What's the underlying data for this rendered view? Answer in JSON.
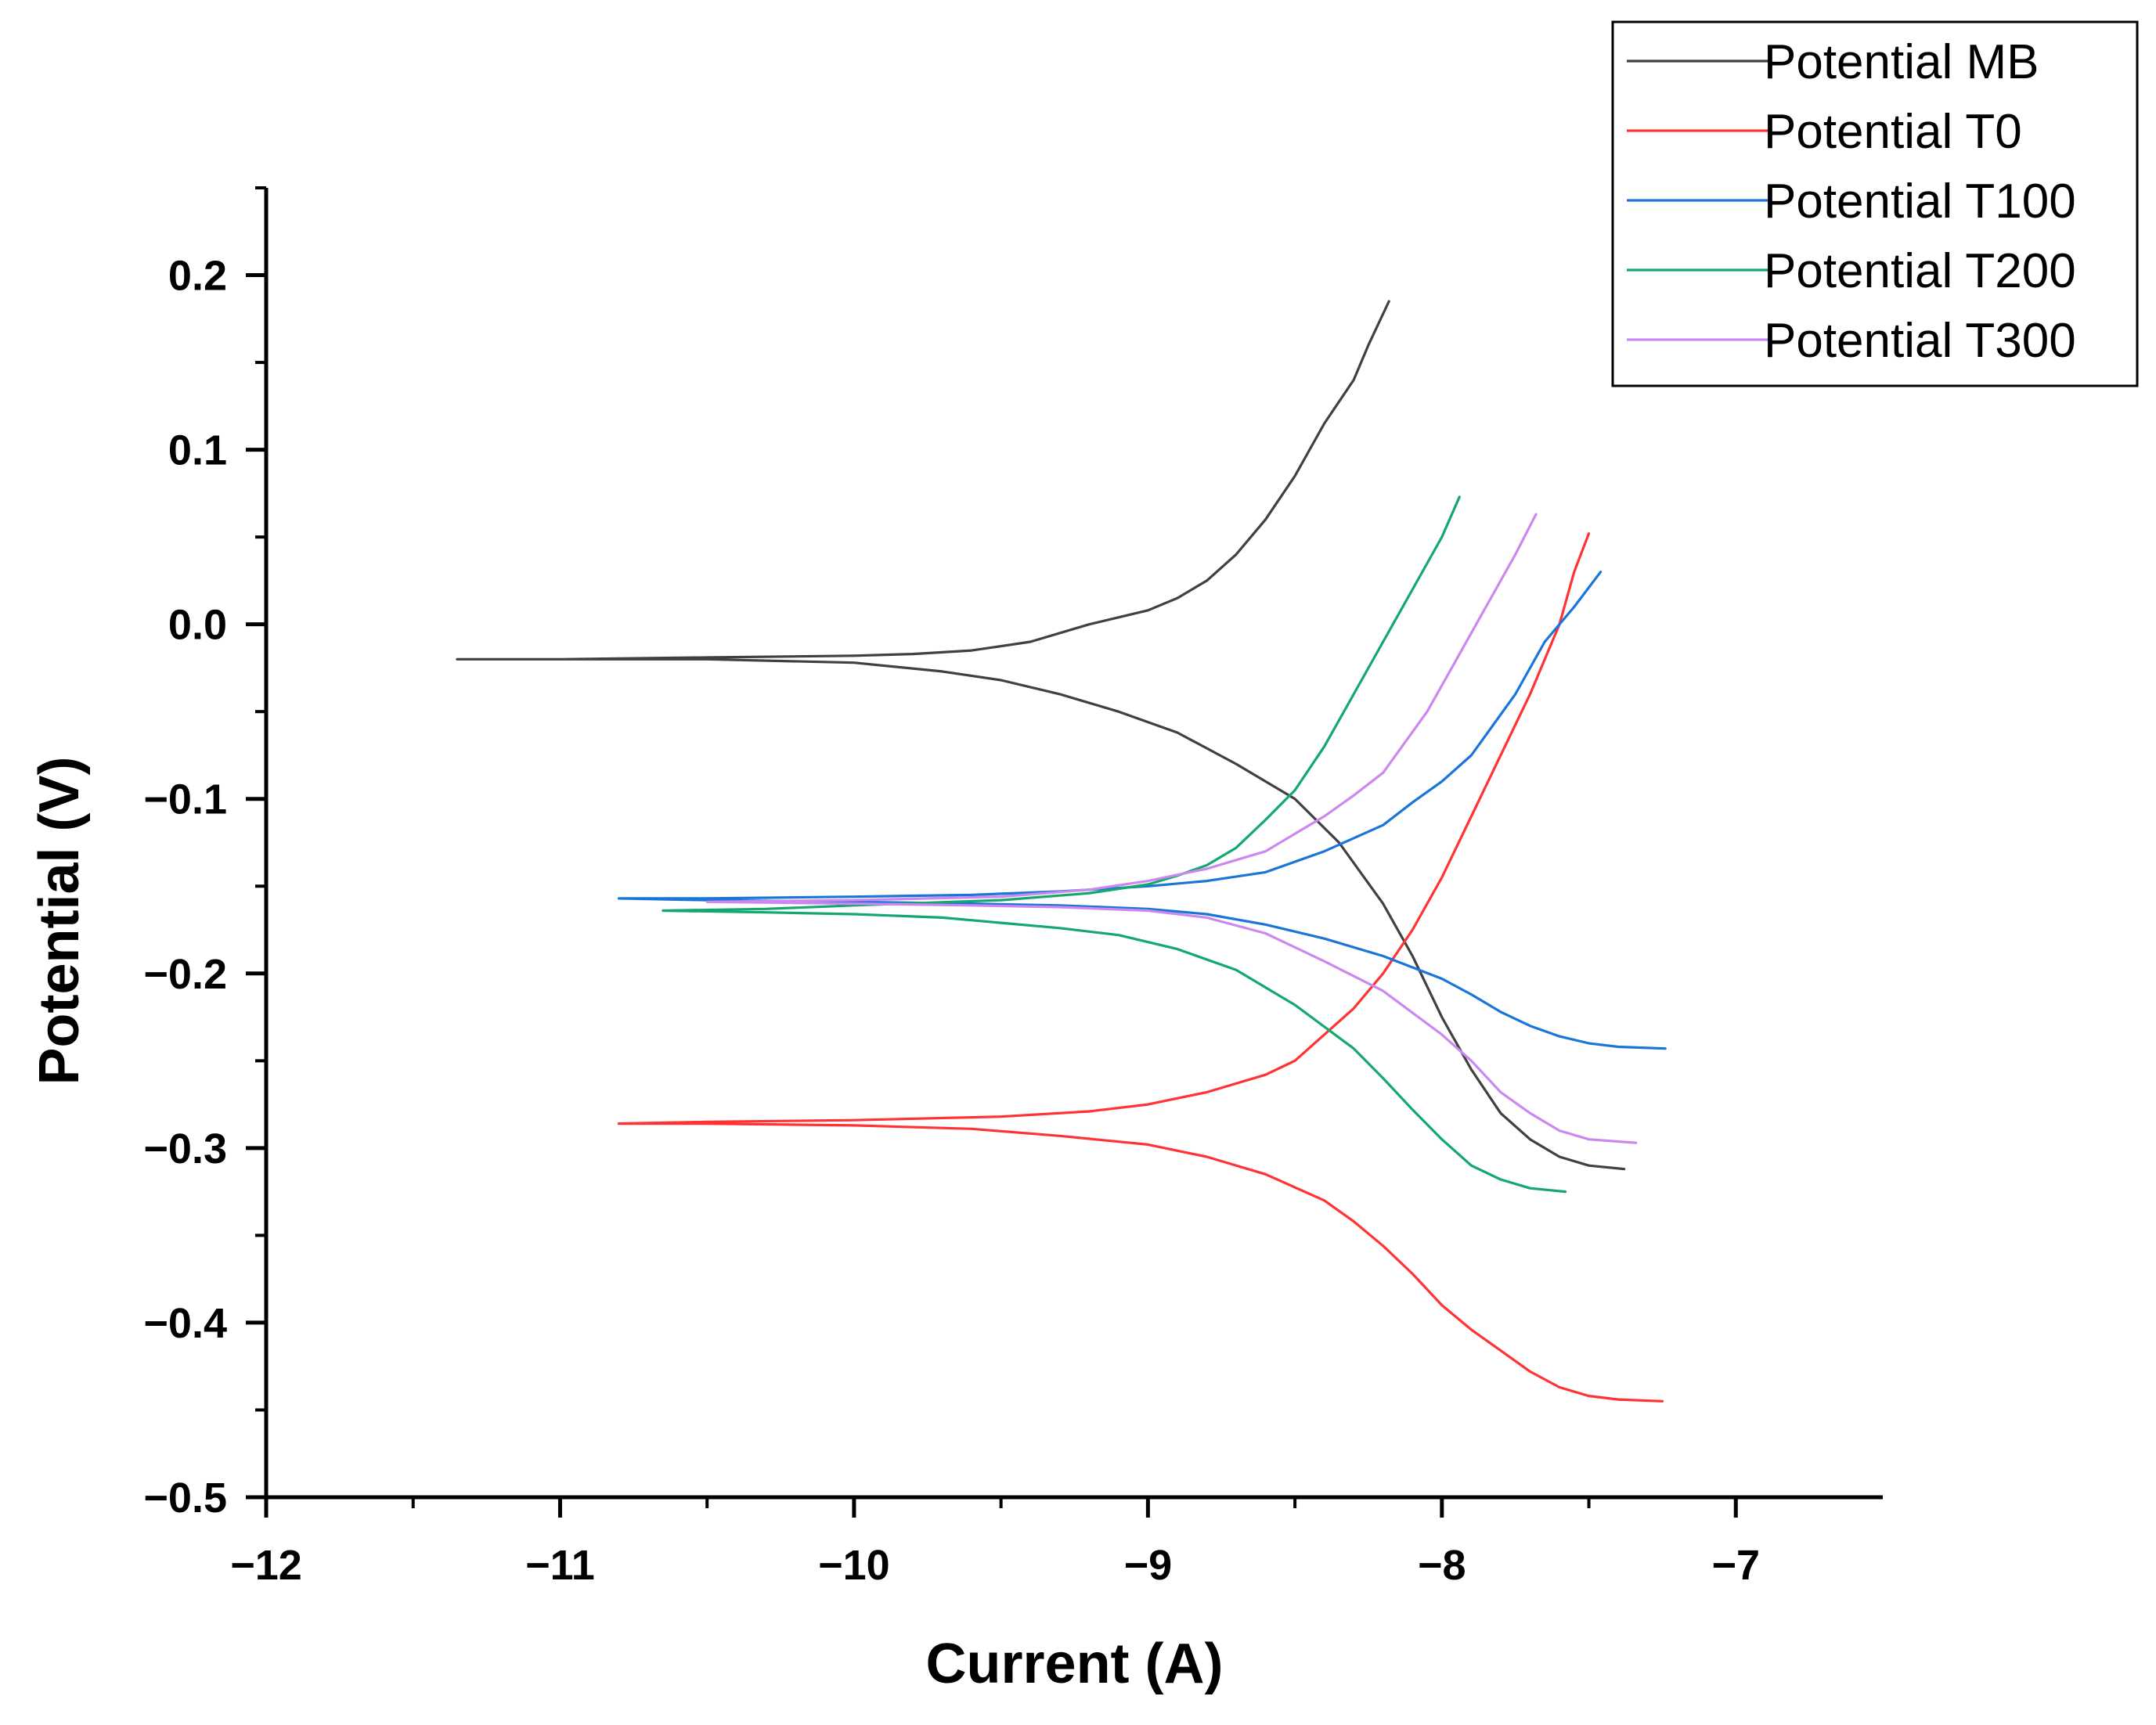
{
  "chart_data": {
    "type": "line",
    "title": "",
    "xlabel": "Current (A)",
    "ylabel": "Potential (V)",
    "xlim": [
      -12,
      -6.5
    ],
    "ylim": [
      -0.5,
      0.25
    ],
    "xticks": [
      -12,
      -11,
      -10,
      -9,
      -8,
      -7
    ],
    "xtick_labels": [
      "−12",
      "−11",
      "−10",
      "−9",
      "−8",
      "−7"
    ],
    "yticks": [
      -0.5,
      -0.4,
      -0.3,
      -0.2,
      -0.1,
      0.0,
      0.1,
      0.2
    ],
    "ytick_labels": [
      "−0.5",
      "−0.4",
      "−0.3",
      "−0.2",
      "−0.1",
      "0.0",
      "0.1",
      "0.2"
    ],
    "legend_position": "top-right",
    "series": [
      {
        "name": "Potential MB",
        "color": "#404040",
        "points": [
          [
            -8.18,
            0.185
          ],
          [
            -8.25,
            0.16
          ],
          [
            -8.3,
            0.14
          ],
          [
            -8.4,
            0.115
          ],
          [
            -8.5,
            0.085
          ],
          [
            -8.6,
            0.06
          ],
          [
            -8.7,
            0.04
          ],
          [
            -8.8,
            0.025
          ],
          [
            -8.9,
            0.015
          ],
          [
            -9.0,
            0.008
          ],
          [
            -9.2,
            0.0
          ],
          [
            -9.4,
            -0.01
          ],
          [
            -9.6,
            -0.015
          ],
          [
            -9.8,
            -0.017
          ],
          [
            -10.0,
            -0.018
          ],
          [
            -10.5,
            -0.019
          ],
          [
            -11.0,
            -0.02
          ],
          [
            -11.35,
            -0.02
          ],
          [
            -11.0,
            -0.02
          ],
          [
            -10.5,
            -0.02
          ],
          [
            -10.0,
            -0.022
          ],
          [
            -9.7,
            -0.027
          ],
          [
            -9.5,
            -0.032
          ],
          [
            -9.3,
            -0.04
          ],
          [
            -9.1,
            -0.05
          ],
          [
            -8.9,
            -0.062
          ],
          [
            -8.7,
            -0.08
          ],
          [
            -8.5,
            -0.1
          ],
          [
            -8.35,
            -0.125
          ],
          [
            -8.2,
            -0.16
          ],
          [
            -8.1,
            -0.19
          ],
          [
            -8.0,
            -0.225
          ],
          [
            -7.9,
            -0.255
          ],
          [
            -7.8,
            -0.28
          ],
          [
            -7.7,
            -0.295
          ],
          [
            -7.6,
            -0.305
          ],
          [
            -7.5,
            -0.31
          ],
          [
            -7.38,
            -0.312
          ]
        ]
      },
      {
        "name": "Potential T0",
        "color": "#ff3333",
        "points": [
          [
            -7.5,
            0.052
          ],
          [
            -7.55,
            0.03
          ],
          [
            -7.6,
            0.0
          ],
          [
            -7.7,
            -0.04
          ],
          [
            -7.8,
            -0.075
          ],
          [
            -7.9,
            -0.11
          ],
          [
            -8.0,
            -0.145
          ],
          [
            -8.1,
            -0.175
          ],
          [
            -8.2,
            -0.2
          ],
          [
            -8.3,
            -0.22
          ],
          [
            -8.4,
            -0.235
          ],
          [
            -8.5,
            -0.25
          ],
          [
            -8.6,
            -0.258
          ],
          [
            -8.8,
            -0.268
          ],
          [
            -9.0,
            -0.275
          ],
          [
            -9.2,
            -0.279
          ],
          [
            -9.5,
            -0.282
          ],
          [
            -10.0,
            -0.284
          ],
          [
            -10.5,
            -0.285
          ],
          [
            -10.8,
            -0.286
          ],
          [
            -10.5,
            -0.286
          ],
          [
            -10.0,
            -0.287
          ],
          [
            -9.6,
            -0.289
          ],
          [
            -9.3,
            -0.293
          ],
          [
            -9.0,
            -0.298
          ],
          [
            -8.8,
            -0.305
          ],
          [
            -8.6,
            -0.315
          ],
          [
            -8.4,
            -0.33
          ],
          [
            -8.3,
            -0.342
          ],
          [
            -8.2,
            -0.356
          ],
          [
            -8.1,
            -0.372
          ],
          [
            -8.0,
            -0.39
          ],
          [
            -7.9,
            -0.404
          ],
          [
            -7.8,
            -0.416
          ],
          [
            -7.7,
            -0.428
          ],
          [
            -7.6,
            -0.437
          ],
          [
            -7.5,
            -0.442
          ],
          [
            -7.4,
            -0.444
          ],
          [
            -7.25,
            -0.445
          ]
        ]
      },
      {
        "name": "Potential T100",
        "color": "#1a75d9",
        "points": [
          [
            -7.46,
            0.03
          ],
          [
            -7.55,
            0.01
          ],
          [
            -7.65,
            -0.01
          ],
          [
            -7.75,
            -0.04
          ],
          [
            -7.9,
            -0.075
          ],
          [
            -8.0,
            -0.09
          ],
          [
            -8.1,
            -0.102
          ],
          [
            -8.2,
            -0.115
          ],
          [
            -8.4,
            -0.13
          ],
          [
            -8.6,
            -0.142
          ],
          [
            -8.8,
            -0.147
          ],
          [
            -9.0,
            -0.15
          ],
          [
            -9.3,
            -0.153
          ],
          [
            -9.6,
            -0.155
          ],
          [
            -10.0,
            -0.156
          ],
          [
            -10.5,
            -0.157
          ],
          [
            -10.8,
            -0.157
          ],
          [
            -10.5,
            -0.158
          ],
          [
            -10.0,
            -0.159
          ],
          [
            -9.6,
            -0.16
          ],
          [
            -9.3,
            -0.161
          ],
          [
            -9.0,
            -0.163
          ],
          [
            -8.8,
            -0.166
          ],
          [
            -8.6,
            -0.172
          ],
          [
            -8.4,
            -0.18
          ],
          [
            -8.2,
            -0.19
          ],
          [
            -8.0,
            -0.203
          ],
          [
            -7.9,
            -0.212
          ],
          [
            -7.8,
            -0.222
          ],
          [
            -7.7,
            -0.23
          ],
          [
            -7.6,
            -0.236
          ],
          [
            -7.5,
            -0.24
          ],
          [
            -7.4,
            -0.242
          ],
          [
            -7.24,
            -0.243
          ]
        ]
      },
      {
        "name": "Potential T200",
        "color": "#14a86e",
        "points": [
          [
            -7.94,
            0.073
          ],
          [
            -8.0,
            0.05
          ],
          [
            -8.1,
            0.02
          ],
          [
            -8.2,
            -0.01
          ],
          [
            -8.3,
            -0.04
          ],
          [
            -8.4,
            -0.07
          ],
          [
            -8.5,
            -0.095
          ],
          [
            -8.6,
            -0.112
          ],
          [
            -8.7,
            -0.128
          ],
          [
            -8.8,
            -0.138
          ],
          [
            -8.9,
            -0.144
          ],
          [
            -9.0,
            -0.149
          ],
          [
            -9.2,
            -0.154
          ],
          [
            -9.5,
            -0.158
          ],
          [
            -10.0,
            -0.161
          ],
          [
            -10.3,
            -0.163
          ],
          [
            -10.65,
            -0.164
          ],
          [
            -10.3,
            -0.165
          ],
          [
            -10.0,
            -0.166
          ],
          [
            -9.7,
            -0.168
          ],
          [
            -9.5,
            -0.171
          ],
          [
            -9.3,
            -0.174
          ],
          [
            -9.1,
            -0.178
          ],
          [
            -8.9,
            -0.186
          ],
          [
            -8.7,
            -0.198
          ],
          [
            -8.5,
            -0.218
          ],
          [
            -8.3,
            -0.243
          ],
          [
            -8.2,
            -0.26
          ],
          [
            -8.1,
            -0.278
          ],
          [
            -8.0,
            -0.295
          ],
          [
            -7.9,
            -0.31
          ],
          [
            -7.8,
            -0.318
          ],
          [
            -7.7,
            -0.323
          ],
          [
            -7.58,
            -0.325
          ]
        ]
      },
      {
        "name": "Potential T300",
        "color": "#cc88ee",
        "points": [
          [
            -7.68,
            0.063
          ],
          [
            -7.75,
            0.04
          ],
          [
            -7.85,
            0.01
          ],
          [
            -7.95,
            -0.02
          ],
          [
            -8.05,
            -0.05
          ],
          [
            -8.2,
            -0.085
          ],
          [
            -8.3,
            -0.098
          ],
          [
            -8.4,
            -0.11
          ],
          [
            -8.5,
            -0.12
          ],
          [
            -8.6,
            -0.13
          ],
          [
            -8.8,
            -0.14
          ],
          [
            -9.0,
            -0.147
          ],
          [
            -9.2,
            -0.152
          ],
          [
            -9.5,
            -0.156
          ],
          [
            -10.0,
            -0.158
          ],
          [
            -10.5,
            -0.159
          ],
          [
            -10.0,
            -0.16
          ],
          [
            -9.6,
            -0.161
          ],
          [
            -9.3,
            -0.162
          ],
          [
            -9.0,
            -0.164
          ],
          [
            -8.8,
            -0.168
          ],
          [
            -8.6,
            -0.177
          ],
          [
            -8.4,
            -0.193
          ],
          [
            -8.2,
            -0.21
          ],
          [
            -8.0,
            -0.235
          ],
          [
            -7.9,
            -0.25
          ],
          [
            -7.8,
            -0.268
          ],
          [
            -7.7,
            -0.28
          ],
          [
            -7.6,
            -0.29
          ],
          [
            -7.5,
            -0.295
          ],
          [
            -7.34,
            -0.297
          ]
        ]
      }
    ]
  }
}
